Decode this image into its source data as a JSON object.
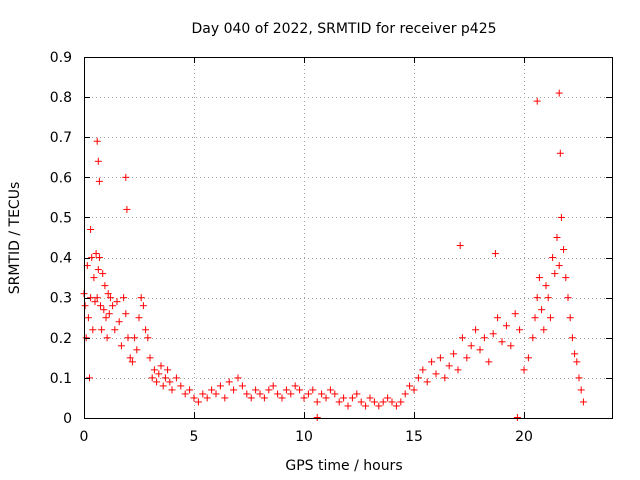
{
  "chart_data": {
    "type": "scatter",
    "title": "Day 040 of 2022, SRMTID for receiver p425",
    "xlabel": "GPS time / hours",
    "ylabel": "SRMTID / TECUs",
    "xlim": [
      0,
      24
    ],
    "ylim": [
      0,
      0.9
    ],
    "xticks": [
      0,
      5,
      10,
      15,
      20
    ],
    "xtick_labels": [
      "0",
      "5",
      "10",
      "15",
      "20"
    ],
    "yticks": [
      0,
      0.1,
      0.2,
      0.3,
      0.4,
      0.5,
      0.6,
      0.7,
      0.8,
      0.9
    ],
    "ytick_labels": [
      "0",
      "0.1",
      "0.2",
      "0.3",
      "0.4",
      "0.5",
      "0.6",
      "0.7",
      "0.8",
      "0.9"
    ],
    "grid": true,
    "marker": "+",
    "color": "#ff0000",
    "legend": "none",
    "series": [
      {
        "name": "SRMTID",
        "x": [
          0.0,
          0.05,
          0.1,
          0.15,
          0.2,
          0.25,
          0.3,
          0.35,
          0.4,
          0.45,
          0.5,
          0.55,
          0.6,
          0.65,
          0.7,
          0.75,
          0.8,
          0.85,
          0.9,
          0.95,
          1.0,
          1.05,
          1.1,
          1.15,
          1.2,
          1.3,
          1.4,
          1.5,
          1.6,
          1.7,
          1.8,
          1.9,
          2.0,
          2.1,
          2.2,
          2.3,
          2.4,
          2.5,
          2.6,
          2.7,
          2.8,
          2.9,
          3.0,
          3.1,
          3.2,
          3.3,
          3.4,
          3.5,
          3.6,
          3.7,
          3.8,
          3.9,
          4.0,
          4.2,
          4.4,
          4.6,
          4.8,
          5.0,
          5.2,
          5.4,
          5.6,
          5.8,
          6.0,
          6.2,
          6.4,
          6.6,
          6.8,
          7.0,
          7.2,
          7.4,
          7.6,
          7.8,
          8.0,
          8.2,
          8.4,
          8.6,
          8.8,
          9.0,
          9.2,
          9.4,
          9.6,
          9.8,
          10.0,
          10.2,
          10.4,
          10.6,
          10.8,
          11.0,
          11.2,
          11.4,
          11.6,
          11.8,
          12.0,
          12.2,
          12.4,
          12.6,
          12.8,
          13.0,
          13.2,
          13.4,
          13.6,
          13.8,
          14.0,
          14.2,
          14.4,
          14.6,
          14.8,
          15.0,
          15.2,
          15.4,
          15.6,
          15.8,
          16.0,
          16.2,
          16.4,
          16.6,
          16.8,
          17.0,
          17.2,
          17.4,
          17.6,
          17.8,
          18.0,
          18.2,
          18.4,
          18.6,
          18.8,
          19.0,
          19.2,
          19.4,
          19.6,
          19.8,
          20.0,
          20.2,
          20.4,
          20.5,
          20.6,
          20.7,
          20.8,
          20.9,
          21.0,
          21.1,
          21.2,
          21.3,
          21.4,
          21.5,
          21.6,
          21.7,
          21.8,
          21.9,
          22.0,
          22.1,
          22.2,
          22.3,
          22.4,
          22.5,
          22.6,
          22.7,
          0.3,
          0.6,
          0.65,
          0.7,
          1.9,
          1.95,
          17.1,
          18.7,
          20.6,
          21.6,
          21.65,
          10.6,
          19.7
        ],
        "y": [
          0.31,
          0.28,
          0.2,
          0.38,
          0.25,
          0.1,
          0.3,
          0.4,
          0.22,
          0.35,
          0.29,
          0.41,
          0.3,
          0.37,
          0.4,
          0.28,
          0.22,
          0.36,
          0.27,
          0.33,
          0.25,
          0.2,
          0.31,
          0.26,
          0.3,
          0.28,
          0.22,
          0.29,
          0.24,
          0.18,
          0.3,
          0.26,
          0.2,
          0.15,
          0.14,
          0.2,
          0.17,
          0.25,
          0.3,
          0.28,
          0.22,
          0.2,
          0.15,
          0.1,
          0.12,
          0.09,
          0.11,
          0.13,
          0.08,
          0.1,
          0.12,
          0.09,
          0.07,
          0.1,
          0.08,
          0.06,
          0.07,
          0.05,
          0.04,
          0.06,
          0.05,
          0.07,
          0.06,
          0.08,
          0.05,
          0.09,
          0.07,
          0.1,
          0.08,
          0.06,
          0.05,
          0.07,
          0.06,
          0.05,
          0.07,
          0.08,
          0.06,
          0.05,
          0.07,
          0.06,
          0.08,
          0.07,
          0.05,
          0.06,
          0.07,
          0.04,
          0.06,
          0.05,
          0.07,
          0.06,
          0.04,
          0.05,
          0.03,
          0.05,
          0.06,
          0.04,
          0.03,
          0.05,
          0.04,
          0.03,
          0.04,
          0.05,
          0.04,
          0.03,
          0.04,
          0.06,
          0.08,
          0.07,
          0.1,
          0.12,
          0.09,
          0.14,
          0.11,
          0.15,
          0.1,
          0.13,
          0.16,
          0.12,
          0.2,
          0.15,
          0.18,
          0.22,
          0.17,
          0.2,
          0.14,
          0.21,
          0.25,
          0.19,
          0.23,
          0.18,
          0.26,
          0.22,
          0.12,
          0.15,
          0.2,
          0.25,
          0.3,
          0.35,
          0.27,
          0.22,
          0.33,
          0.3,
          0.25,
          0.4,
          0.36,
          0.45,
          0.38,
          0.5,
          0.42,
          0.35,
          0.3,
          0.25,
          0.2,
          0.16,
          0.14,
          0.1,
          0.07,
          0.04,
          0.47,
          0.69,
          0.64,
          0.59,
          0.6,
          0.52,
          0.43,
          0.41,
          0.79,
          0.81,
          0.66,
          0.0,
          0.0
        ]
      }
    ]
  }
}
